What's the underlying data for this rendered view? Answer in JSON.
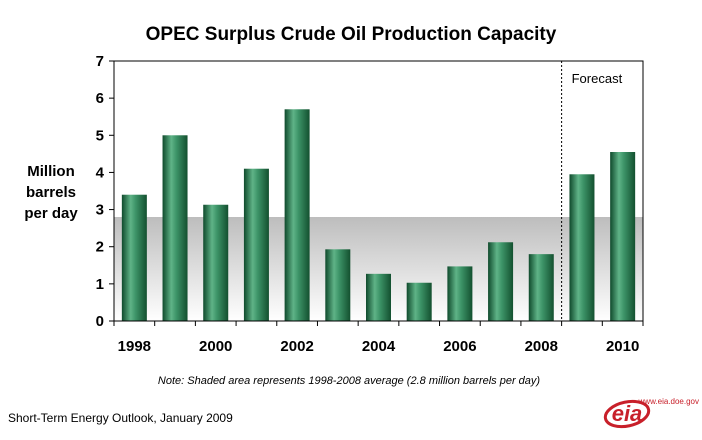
{
  "chart_data": {
    "type": "bar",
    "title": "OPEC Surplus Crude Oil Production Capacity",
    "ylabel": [
      "Million",
      "barrels",
      "per day"
    ],
    "xlabel": "",
    "ylim": [
      0,
      7
    ],
    "yticks": [
      0,
      1,
      2,
      3,
      4,
      5,
      6,
      7
    ],
    "categories": [
      "1998",
      "1999",
      "2000",
      "2001",
      "2002",
      "2003",
      "2004",
      "2005",
      "2006",
      "2007",
      "2008",
      "2009",
      "2010"
    ],
    "tick_labels": [
      "1998",
      "",
      "2000",
      "",
      "2002",
      "",
      "2004",
      "",
      "2006",
      "",
      "2008",
      "",
      "2010"
    ],
    "values": [
      3.4,
      5.0,
      3.13,
      4.1,
      5.7,
      1.93,
      1.27,
      1.03,
      1.47,
      2.12,
      1.8,
      3.95,
      4.55
    ],
    "shaded_average": 2.8,
    "forecast_start": "2009",
    "forecast_label": "Forecast",
    "grid": false,
    "bar_color": "#1f6e46",
    "bar_highlight": "#5fb387"
  },
  "note": "Note: Shaded area represents 1998-2008 average (2.8 million barrels per day)",
  "source": "Short-Term Energy Outlook, January 2009",
  "logo": {
    "url": "www.eia.doe.gov",
    "text": "eia",
    "color": "#c8202a"
  }
}
